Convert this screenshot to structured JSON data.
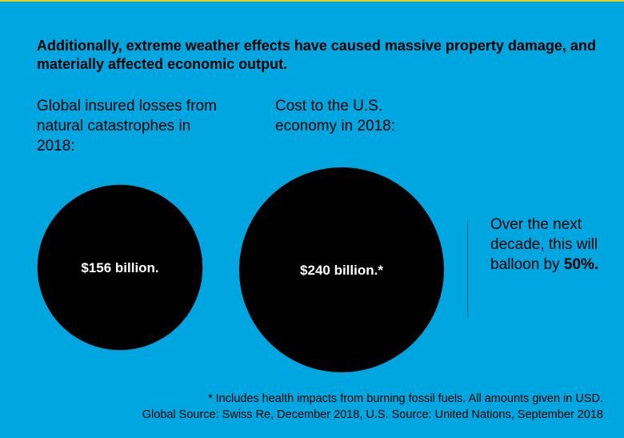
{
  "headline": "Additionally, extreme weather effects have caused massive property damage, and materially affected economic output.",
  "chart_data": {
    "type": "bubble",
    "title": "Additionally, extreme weather effects have caused massive property damage, and materially affected economic output.",
    "unit": "billion",
    "series": [
      {
        "name": "Global insured losses from natural catastrophes in 2018:",
        "value": 156,
        "label": "$156 billion."
      },
      {
        "name": "Cost to the U.S. economy in 2018:",
        "value": 240,
        "label": "$240 billion.*"
      }
    ],
    "colors": {
      "background": "#00a6df",
      "bubble": "#000000",
      "bubble_text": "#ffffff"
    }
  },
  "projection": {
    "text": "Over the next decade, this will balloon by",
    "highlight": "50%."
  },
  "footnotes": {
    "line1": "* Includes health impacts from burning fossil fuels. All amounts given in USD.",
    "line2": "Global Source: Swiss Re, December 2018, U.S. Source: United Nations, September 2018"
  }
}
